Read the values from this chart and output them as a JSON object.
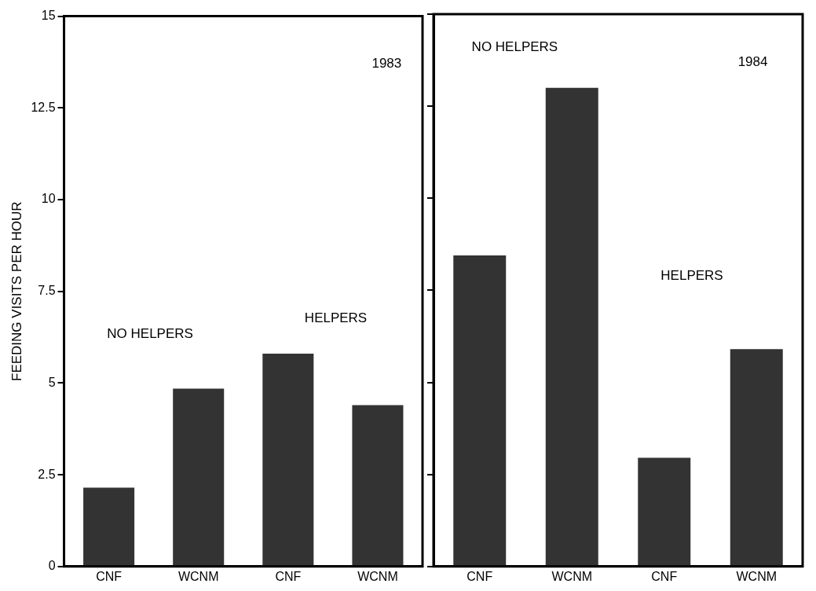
{
  "chart_data": [
    {
      "type": "bar",
      "ylabel": "FEEDING VISITS PER HOUR",
      "categories": [
        "CNF",
        "WCNM",
        "CNF",
        "WCNM"
      ],
      "values": [
        2.15,
        4.85,
        5.8,
        4.4
      ],
      "color": "#333333",
      "ylim": [
        0,
        15
      ],
      "yticks": [
        0,
        2.5,
        5,
        7.5,
        10,
        12.5,
        15
      ],
      "grid": false,
      "annotations": [
        "1983",
        "NO HELPERS",
        "HELPERS"
      ]
    },
    {
      "type": "bar",
      "categories": [
        "CNF",
        "WCNM",
        "CNF",
        "WCNM"
      ],
      "values": [
        8.45,
        13,
        2.95,
        5.9
      ],
      "color": "#333333",
      "ylim": [
        0,
        15
      ],
      "yticks": [
        0,
        2.5,
        5,
        7.5,
        10,
        12.5,
        15
      ],
      "grid": false,
      "tick_labels": "x",
      "annotations": [
        "NO HELPERS",
        "1984",
        "HELPERS"
      ]
    }
  ]
}
